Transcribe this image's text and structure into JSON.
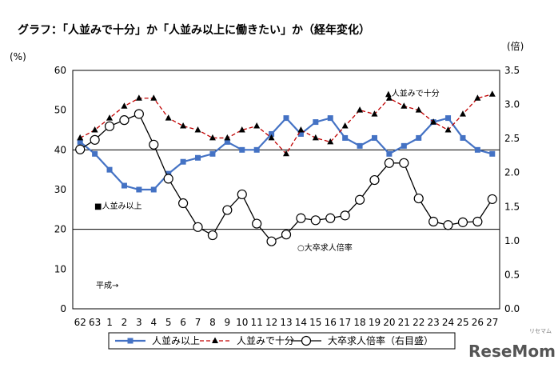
{
  "title": "グラフ：「人並みで十分」か「人並み以上に働きたい」か（経年変化）",
  "left_axis_unit": "(%)",
  "right_axis_unit": "(倍)",
  "era_note": "平成→",
  "watermark": {
    "main": "ReseMom",
    "sub": "リセマム"
  },
  "chart_data": {
    "type": "line",
    "x": [
      "62",
      "63",
      "1",
      "2",
      "3",
      "4",
      "5",
      "6",
      "7",
      "8",
      "9",
      "10",
      "11",
      "12",
      "13",
      "14",
      "15",
      "16",
      "17",
      "18",
      "19",
      "20",
      "21",
      "22",
      "23",
      "24",
      "25",
      "26",
      "27"
    ],
    "ylim_left": [
      0,
      60
    ],
    "yticks_left": [
      0,
      10,
      20,
      30,
      40,
      50,
      60
    ],
    "ylim_right": [
      0.0,
      3.5
    ],
    "yticks_right": [
      "0.0",
      "0.5",
      "1.0",
      "1.5",
      "2.0",
      "2.5",
      "3.0",
      "3.5"
    ],
    "grid": "horizontal at 20, 40, 60",
    "series": [
      {
        "name": "人並み以上",
        "axis": "left",
        "color": "#4472C4",
        "marker": "square",
        "label_on_chart": "■人並み以上",
        "values": [
          42,
          39,
          35,
          31,
          30,
          30,
          34,
          37,
          38,
          39,
          42,
          40,
          40,
          44,
          48,
          44,
          47,
          48,
          43,
          41,
          43,
          39,
          41,
          43,
          47,
          48,
          43,
          40,
          39
        ]
      },
      {
        "name": "人並みで十分",
        "axis": "left",
        "color": "#C00000",
        "marker": "triangle",
        "label_on_chart": "▲人並みで十分",
        "values": [
          43,
          45,
          48,
          51,
          53,
          53,
          48,
          46,
          45,
          43,
          43,
          45,
          46,
          43,
          39,
          45,
          43,
          42,
          46,
          50,
          49,
          53,
          51,
          50,
          47,
          45,
          49,
          53,
          54
        ]
      },
      {
        "name": "大卒求人倍率（右目盛）",
        "axis": "right",
        "color": "#000000",
        "marker": "circle",
        "label_on_chart": "○大卒求人倍率",
        "values": [
          2.34,
          2.48,
          2.68,
          2.77,
          2.86,
          2.41,
          1.91,
          1.55,
          1.2,
          1.08,
          1.45,
          1.68,
          1.25,
          0.99,
          1.09,
          1.33,
          1.3,
          1.33,
          1.37,
          1.6,
          1.89,
          2.14,
          2.14,
          1.62,
          1.28,
          1.23,
          1.27,
          1.28,
          1.61
        ]
      }
    ]
  }
}
